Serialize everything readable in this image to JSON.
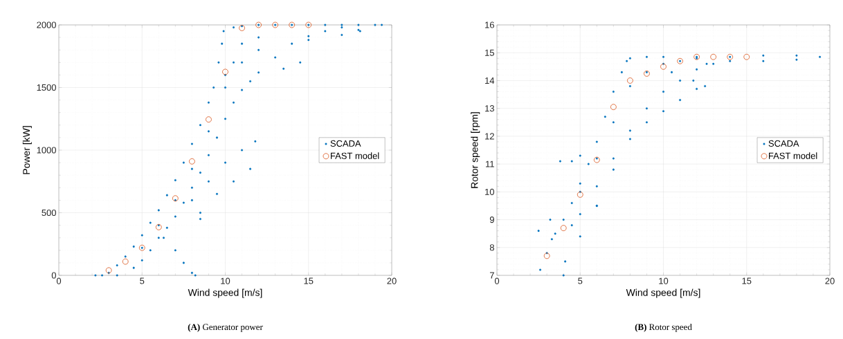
{
  "chart_data": [
    {
      "type": "scatter",
      "title": "**(A)** Generator power",
      "xlabel": "Wind speed [m/s]",
      "ylabel": "Power [kW]",
      "xlim": [
        0,
        20
      ],
      "ylim": [
        0,
        2000
      ],
      "xticks": [
        0,
        5,
        10,
        15,
        20
      ],
      "yticks": [
        0,
        500,
        1000,
        1500,
        2000
      ],
      "grid": true,
      "legend": "right",
      "series": [
        {
          "name": "SCADA",
          "color": "#0072bd",
          "marker": "circle",
          "x": [
            2.2,
            2.6,
            3,
            3.5,
            4,
            4.5,
            5,
            5.5,
            6,
            6.5,
            7,
            7.5,
            8,
            8.5,
            9,
            9.3,
            9.6,
            9.8,
            9.9,
            10.5,
            11,
            12,
            13,
            14,
            15,
            16,
            17,
            18,
            19,
            19.4,
            3.5,
            4.5,
            5,
            5.5,
            6,
            6.5,
            7,
            7.5,
            8,
            8.5,
            9,
            9.5,
            10,
            10.5,
            11,
            11.5,
            12,
            13,
            14,
            15,
            16,
            17,
            18,
            18.1,
            17,
            15,
            14.5,
            13.5,
            8,
            9,
            10,
            11,
            11.8,
            8.5,
            9.5,
            10.5,
            11.5,
            6.3,
            7,
            7.5,
            8,
            8.2,
            8.5,
            5,
            6,
            7,
            8,
            9,
            10,
            10.5,
            11,
            12,
            12,
            11,
            10
          ],
          "values": [
            0,
            0,
            20,
            80,
            150,
            230,
            320,
            420,
            520,
            640,
            760,
            900,
            1050,
            1200,
            1380,
            1500,
            1700,
            1850,
            1950,
            1980,
            1990,
            2000,
            2000,
            2000,
            2000,
            2000,
            2000,
            2000,
            2000,
            2000,
            0,
            60,
            120,
            200,
            300,
            380,
            470,
            580,
            700,
            820,
            960,
            1100,
            1250,
            1380,
            1480,
            1550,
            1620,
            1740,
            1850,
            1910,
            1950,
            1980,
            1960,
            1950,
            1920,
            1880,
            1700,
            1650,
            600,
            750,
            900,
            1000,
            1070,
            500,
            650,
            750,
            850,
            300,
            200,
            100,
            20,
            0,
            450,
            220,
            400,
            600,
            850,
            1150,
            1500,
            1700,
            1850,
            1900,
            1800,
            1700,
            1600
          ]
        },
        {
          "name": "FAST model",
          "color": "#d95319",
          "marker": "circle",
          "x": [
            3,
            4,
            5,
            6,
            7,
            8,
            9,
            10,
            11,
            12,
            13,
            14,
            15
          ],
          "values": [
            40,
            110,
            220,
            385,
            615,
            910,
            1245,
            1625,
            1975,
            2000,
            2000,
            2000,
            2000
          ]
        }
      ]
    },
    {
      "type": "scatter",
      "title": "**(B)** Rotor speed",
      "xlabel": "Wind speed [m/s]",
      "ylabel": "Rotor speed [rpm]",
      "xlim": [
        0,
        20
      ],
      "ylim": [
        7,
        16
      ],
      "xticks": [
        0,
        5,
        10,
        15,
        20
      ],
      "yticks": [
        7,
        8,
        9,
        10,
        11,
        12,
        13,
        14,
        15,
        16
      ],
      "grid": true,
      "legend": "right",
      "series": [
        {
          "name": "SCADA",
          "color": "#0072bd",
          "marker": "circle",
          "x": [
            2.6,
            3,
            3.5,
            4,
            4.5,
            5,
            5.5,
            6,
            6.5,
            7,
            7.5,
            7.8,
            8,
            9,
            10,
            12,
            14,
            16,
            18,
            19.4,
            4.5,
            5,
            6,
            7,
            8,
            9,
            10,
            11,
            12,
            13,
            14,
            16,
            18,
            5,
            6,
            7,
            8,
            9,
            10,
            11,
            12,
            12.5,
            12.6,
            11.8,
            10.5,
            2.5,
            3.2,
            3.8,
            4.5,
            5,
            6,
            4,
            4.1,
            3.3,
            5,
            6,
            7,
            8,
            9,
            10,
            11,
            12
          ],
          "values": [
            7.2,
            7.8,
            8.5,
            9.0,
            9.6,
            10.3,
            11,
            11.8,
            12.7,
            13.6,
            14.3,
            14.7,
            14.8,
            14.85,
            14.85,
            14.85,
            14.85,
            14.9,
            14.9,
            14.85,
            8.8,
            9.2,
            10.2,
            11.2,
            12.2,
            13.0,
            13.6,
            14.0,
            14.4,
            14.6,
            14.7,
            14.7,
            14.75,
            8.4,
            9.5,
            10.8,
            11.9,
            12.5,
            12.9,
            13.3,
            13.7,
            13.8,
            14.6,
            14.0,
            14.3,
            8.6,
            9.0,
            11.1,
            11.1,
            11.3,
            9.5,
            7.0,
            7.5,
            8.3,
            10,
            11.2,
            12.5,
            13.8,
            14.3,
            14.6,
            14.7,
            14.8
          ]
        },
        {
          "name": "FAST model",
          "color": "#d95319",
          "marker": "circle",
          "x": [
            3,
            4,
            5,
            6,
            7,
            8,
            9,
            10,
            11,
            12,
            13,
            14,
            15
          ],
          "values": [
            7.7,
            8.7,
            9.9,
            11.15,
            13.05,
            14.0,
            14.25,
            14.5,
            14.7,
            14.85,
            14.85,
            14.85,
            14.85
          ]
        }
      ]
    }
  ]
}
